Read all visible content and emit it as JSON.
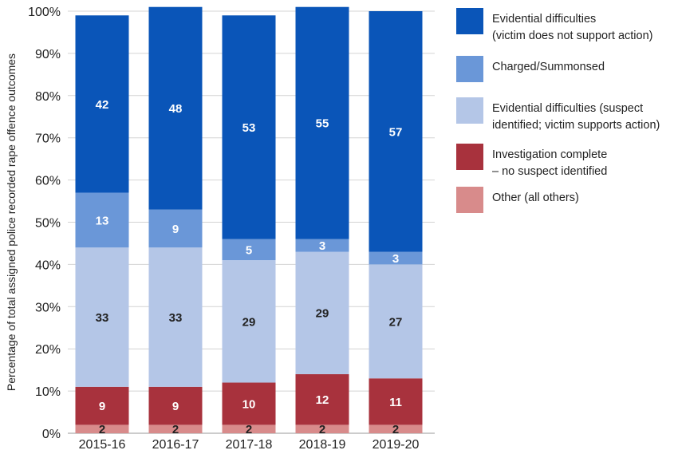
{
  "chart_data": {
    "type": "bar",
    "stacked": true,
    "ylabel": "Percentage of total assigned police recorded rape offence outcomes",
    "ylim": [
      0,
      100
    ],
    "yticks": [
      "0%",
      "10%",
      "20%",
      "30%",
      "40%",
      "50%",
      "60%",
      "70%",
      "80%",
      "90%",
      "100%"
    ],
    "categories": [
      "2015-16",
      "2016-17",
      "2017-18",
      "2018-19",
      "2019-20"
    ],
    "grid": true,
    "legend_position": "right",
    "series": [
      {
        "name": "Other (all others)",
        "color": "#d88b8b",
        "label_color": "#222222",
        "values": [
          2,
          2,
          2,
          2,
          2
        ]
      },
      {
        "name": "Investigation complete – no suspect identified",
        "color": "#a8323d",
        "label_color": "#ffffff",
        "values": [
          9,
          9,
          10,
          12,
          11
        ]
      },
      {
        "name": "Evidential difficulties (suspect identified; victim supports action)",
        "color": "#b4c6e7",
        "label_color": "#222222",
        "values": [
          33,
          33,
          29,
          29,
          27
        ]
      },
      {
        "name": "Charged/Summonsed",
        "color": "#6a97d8",
        "label_color": "#ffffff",
        "values": [
          13,
          9,
          5,
          3,
          3
        ]
      },
      {
        "name": "Evidential difficulties (victim does not support action)",
        "color": "#0a55b8",
        "label_color": "#ffffff",
        "values": [
          42,
          48,
          53,
          55,
          57
        ]
      }
    ]
  },
  "legend": [
    {
      "lines": [
        "Evidential difficulties",
        "(victim does not support action)"
      ],
      "color": "#0a55b8"
    },
    {
      "lines": [
        "Charged/Summonsed"
      ],
      "color": "#6a97d8"
    },
    {
      "lines": [
        "Evidential difficulties (suspect",
        "identified; victim supports action)"
      ],
      "color": "#b4c6e7"
    },
    {
      "lines": [
        "Investigation complete",
        "– no suspect identified"
      ],
      "color": "#a8323d"
    },
    {
      "lines": [
        "Other (all others)"
      ],
      "color": "#d88b8b"
    }
  ]
}
